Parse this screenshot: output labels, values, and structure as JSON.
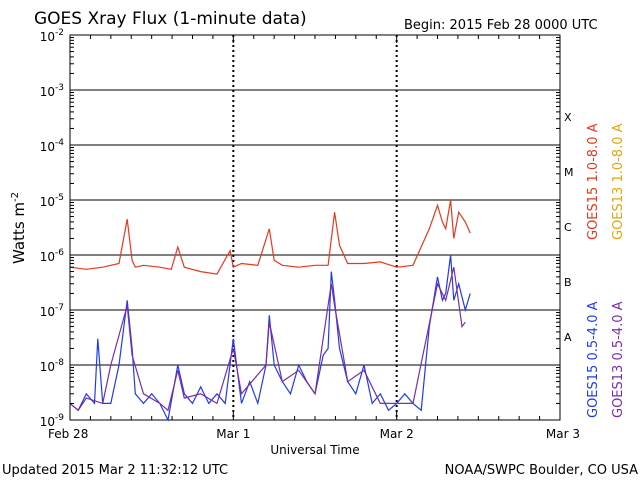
{
  "chart_data": {
    "type": "line",
    "title": "GOES Xray Flux (1-minute data)",
    "begin_label": "Begin:  2015 Feb 28 0000 UTC",
    "xlabel": "Universal Time",
    "ylabel": "Watts m",
    "ylabel_superscript": "-2",
    "x_ticks": [
      "Feb 28",
      "Mar 1",
      "Mar 2",
      "Mar 3"
    ],
    "xlim_days": [
      0,
      3
    ],
    "y_scale": "log",
    "ylim": [
      1e-09,
      0.01
    ],
    "y_ticks": [
      {
        "base": "10",
        "exp": "-2",
        "value": 0.01
      },
      {
        "base": "10",
        "exp": "-3",
        "value": 0.001
      },
      {
        "base": "10",
        "exp": "-4",
        "value": 0.0001
      },
      {
        "base": "10",
        "exp": "-5",
        "value": 1e-05
      },
      {
        "base": "10",
        "exp": "-6",
        "value": 1e-06
      },
      {
        "base": "10",
        "exp": "-7",
        "value": 1e-07
      },
      {
        "base": "10",
        "exp": "-8",
        "value": 1e-08
      },
      {
        "base": "10",
        "exp": "-9",
        "value": 1e-09
      }
    ],
    "flare_classes": [
      {
        "label": "X",
        "value": 0.00032
      },
      {
        "label": "M",
        "value": 3.2e-05
      },
      {
        "label": "C",
        "value": 3.2e-06
      },
      {
        "label": "B",
        "value": 3.2e-07
      },
      {
        "label": "A",
        "value": 3.2e-08
      }
    ],
    "grid": true,
    "legend_placement": "right",
    "series": [
      {
        "name": "GOES15 1.0-8.0 A",
        "color": "#e8371d",
        "x": [
          0.0,
          0.1,
          0.2,
          0.3,
          0.35,
          0.38,
          0.4,
          0.45,
          0.55,
          0.62,
          0.66,
          0.7,
          0.8,
          0.9,
          0.98,
          1.0,
          1.05,
          1.15,
          1.22,
          1.25,
          1.3,
          1.4,
          1.5,
          1.58,
          1.62,
          1.65,
          1.7,
          1.8,
          1.9,
          2.0,
          2.1,
          2.2,
          2.25,
          2.28,
          2.3,
          2.33,
          2.35,
          2.38,
          2.42,
          2.45
        ],
        "values": [
          6e-07,
          5.5e-07,
          6e-07,
          7e-07,
          4.5e-06,
          8e-07,
          6e-07,
          6.5e-07,
          6e-07,
          5.5e-07,
          1.4e-06,
          6e-07,
          5e-07,
          4.5e-07,
          1.2e-06,
          6e-07,
          7e-07,
          6.5e-07,
          3e-06,
          8e-07,
          6.5e-07,
          6e-07,
          6.5e-07,
          6.5e-07,
          6e-06,
          1.5e-06,
          7e-07,
          7e-07,
          7.5e-07,
          6e-07,
          6.5e-07,
          3e-06,
          8e-06,
          4e-06,
          3e-06,
          1e-05,
          2e-06,
          6e-06,
          4e-06,
          2.5e-06
        ]
      },
      {
        "name": "GOES13 1.0-8.0 A",
        "color": "#e6a40a",
        "x": [],
        "values": []
      },
      {
        "name": "GOES15 0.5-4.0 A",
        "color": "#1f3bf0",
        "x": [
          0.0,
          0.05,
          0.1,
          0.15,
          0.17,
          0.2,
          0.25,
          0.3,
          0.35,
          0.38,
          0.4,
          0.45,
          0.5,
          0.55,
          0.6,
          0.66,
          0.7,
          0.75,
          0.8,
          0.85,
          0.9,
          0.95,
          1.0,
          1.05,
          1.1,
          1.15,
          1.2,
          1.22,
          1.25,
          1.3,
          1.35,
          1.4,
          1.45,
          1.5,
          1.55,
          1.58,
          1.6,
          1.62,
          1.65,
          1.7,
          1.75,
          1.8,
          1.85,
          1.9,
          1.95,
          2.0,
          2.05,
          2.1,
          2.15,
          2.2,
          2.25,
          2.28,
          2.3,
          2.33,
          2.35,
          2.38,
          2.42,
          2.45
        ],
        "values": [
          2e-09,
          1.5e-09,
          3e-09,
          2e-09,
          3e-08,
          2e-09,
          2e-09,
          1e-08,
          1.5e-07,
          2e-08,
          3e-09,
          2e-09,
          3e-09,
          2e-09,
          1e-09,
          1e-08,
          3e-09,
          2e-09,
          4e-09,
          2e-09,
          3e-09,
          2e-09,
          3e-08,
          2e-09,
          5e-09,
          2e-09,
          1e-08,
          8e-08,
          1e-08,
          5e-09,
          3e-09,
          1e-08,
          5e-09,
          3e-09,
          1.5e-08,
          2e-08,
          5e-07,
          1.5e-07,
          2e-08,
          5e-09,
          3e-09,
          1e-08,
          2e-09,
          3e-09,
          1.5e-09,
          2e-09,
          3e-09,
          2e-09,
          1.5e-09,
          5e-08,
          4e-07,
          1.5e-07,
          2e-07,
          1e-06,
          1.5e-07,
          3e-07,
          1e-07,
          2e-07
        ]
      },
      {
        "name": "GOES13 0.5-4.0 A",
        "color": "#7b2ca8",
        "x": [
          0.0,
          0.05,
          0.1,
          0.2,
          0.25,
          0.35,
          0.38,
          0.45,
          0.55,
          0.6,
          0.66,
          0.7,
          0.8,
          0.9,
          1.0,
          1.05,
          1.2,
          1.22,
          1.3,
          1.4,
          1.5,
          1.6,
          1.62,
          1.7,
          1.8,
          1.9,
          2.0,
          2.1,
          2.25,
          2.3,
          2.35,
          2.4,
          2.42
        ],
        "values": [
          2e-09,
          1.5e-09,
          2.5e-09,
          2e-09,
          1e-08,
          1.2e-07,
          1.5e-08,
          3e-09,
          2e-09,
          1.5e-09,
          8e-09,
          2.5e-09,
          3e-09,
          2e-09,
          2e-08,
          3e-09,
          1e-08,
          6e-08,
          5e-09,
          8e-09,
          3e-09,
          3e-07,
          1.2e-07,
          5e-09,
          8e-09,
          2e-09,
          2e-09,
          2e-09,
          3e-07,
          1.5e-07,
          6e-07,
          5e-08,
          6e-08
        ]
      }
    ]
  },
  "footer": {
    "updated": "Updated 2015 Mar  2 11:32:12 UTC",
    "source": "NOAA/SWPC Boulder, CO USA"
  }
}
